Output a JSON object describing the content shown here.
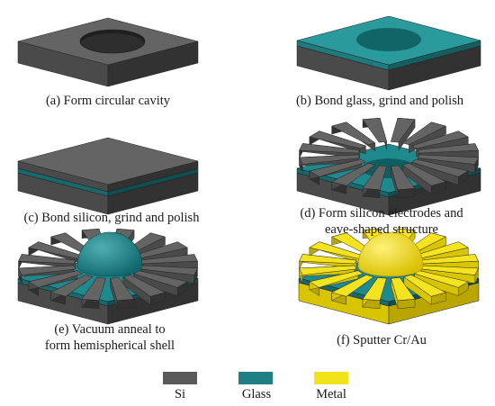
{
  "panels": [
    {
      "id": "a",
      "caption": "(a) Form circular cavity"
    },
    {
      "id": "b",
      "caption": "(b) Bond glass, grind and polish"
    },
    {
      "id": "c",
      "caption": "(c) Bond silicon, grind and polish"
    },
    {
      "id": "d",
      "caption_lines": [
        "(d) Form silicon electrodes and",
        "eave-shaped structure"
      ]
    },
    {
      "id": "e",
      "caption_lines": [
        "(e) Vacuum anneal to",
        "form hemispherical shell"
      ]
    },
    {
      "id": "f",
      "caption": "(f) Sputter Cr/Au"
    }
  ],
  "legend": [
    {
      "label": "Si",
      "color": "#5a5a5a"
    },
    {
      "label": "Glass",
      "color": "#1f7f83"
    },
    {
      "label": "Metal",
      "color": "#f2e21a"
    }
  ],
  "electrode_count": 16
}
